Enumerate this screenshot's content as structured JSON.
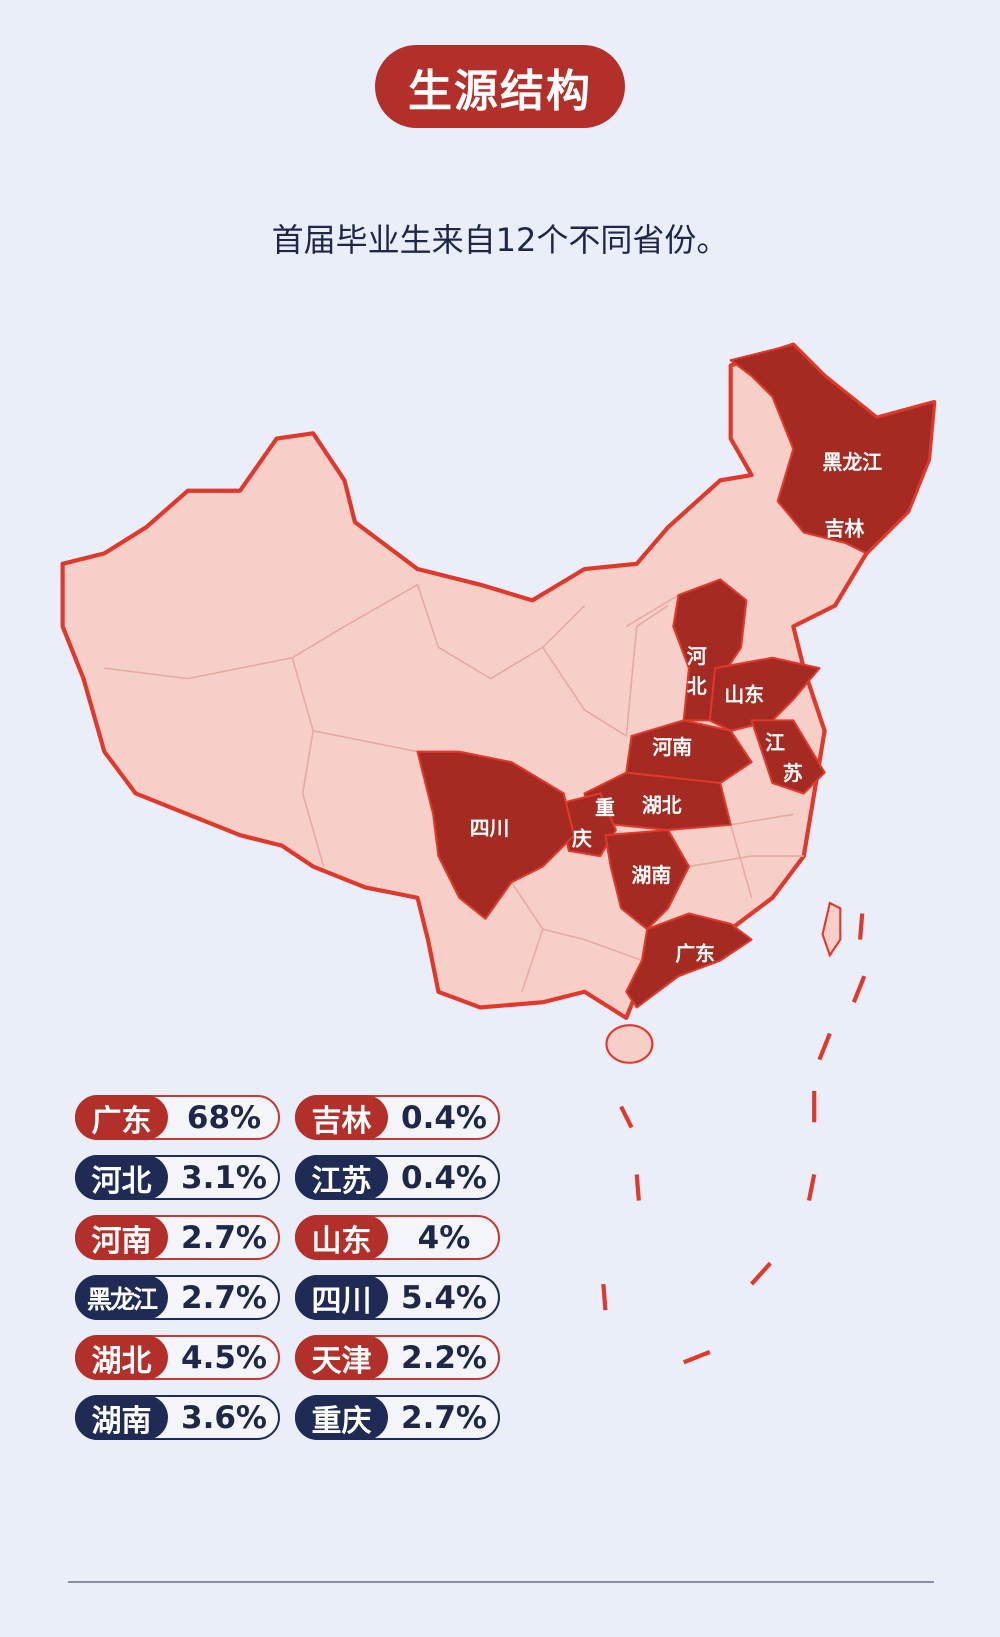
{
  "header": {
    "title": "生源结构",
    "subtitle": "首届毕业生来自12个不同省份。"
  },
  "colors": {
    "accent_red": "#b3302a",
    "navy": "#1f2a55",
    "map_base": "#f6cfc9",
    "map_border": "#e0382a",
    "background": "#e9eef9"
  },
  "map": {
    "labels": {
      "heilongjiang": "黑龙江",
      "jilin": "吉林",
      "hebei_1": "河",
      "hebei_2": "北",
      "shandong": "山东",
      "henan": "河南",
      "jiangsu_1": "江",
      "jiangsu_2": "苏",
      "sichuan": "四川",
      "chongqing_1": "重",
      "chongqing_2": "庆",
      "hubei": "湖北",
      "hunan": "湖南",
      "guangdong": "广东"
    }
  },
  "legend": [
    {
      "province": "广东",
      "share": "68%",
      "color": "red"
    },
    {
      "province": "吉林",
      "share": "0.4%",
      "color": "red"
    },
    {
      "province": "河北",
      "share": "3.1%",
      "color": "navy"
    },
    {
      "province": "江苏",
      "share": "0.4%",
      "color": "navy"
    },
    {
      "province": "河南",
      "share": "2.7%",
      "color": "red"
    },
    {
      "province": "山东",
      "share": "4%",
      "color": "red"
    },
    {
      "province": "黑龙江",
      "share": "2.7%",
      "color": "navy"
    },
    {
      "province": "四川",
      "share": "5.4%",
      "color": "navy"
    },
    {
      "province": "湖北",
      "share": "4.5%",
      "color": "red"
    },
    {
      "province": "天津",
      "share": "2.2%",
      "color": "red"
    },
    {
      "province": "湖南",
      "share": "3.6%",
      "color": "navy"
    },
    {
      "province": "重庆",
      "share": "2.7%",
      "color": "navy"
    }
  ]
}
